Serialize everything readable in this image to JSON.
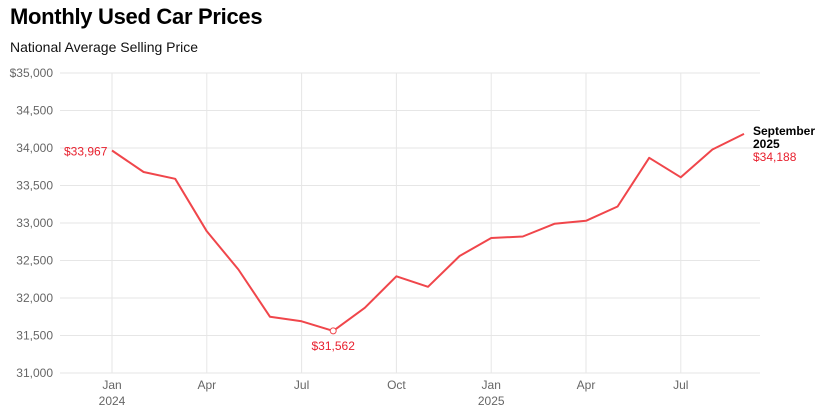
{
  "header": {
    "title": "Monthly Used Car Prices",
    "subtitle": "National Average Selling Price"
  },
  "colors": {
    "line": "#f0464b",
    "label": "#e8202e",
    "grid": "#e6e6e6"
  },
  "chart_data": {
    "type": "line",
    "title": "Monthly Used Car Prices",
    "subtitle": "National Average Selling Price",
    "xlabel": "",
    "ylabel": "",
    "ylim": [
      31000,
      35000
    ],
    "grid": true,
    "y_ticks": [
      31000,
      31500,
      32000,
      32500,
      33000,
      33500,
      34000,
      34500,
      35000
    ],
    "y_tick_labels": [
      "31,000",
      "31,500",
      "32,000",
      "32,500",
      "33,000",
      "33,500",
      "34,000",
      "34,500",
      "$35,000"
    ],
    "x_ticks": [
      {
        "month": "2024-01",
        "label": "Jan",
        "year": "2024"
      },
      {
        "month": "2024-04",
        "label": "Apr",
        "year": ""
      },
      {
        "month": "2024-07",
        "label": "Jul",
        "year": ""
      },
      {
        "month": "2024-10",
        "label": "Oct",
        "year": ""
      },
      {
        "month": "2025-01",
        "label": "Jan",
        "year": "2025"
      },
      {
        "month": "2025-04",
        "label": "Apr",
        "year": ""
      },
      {
        "month": "2025-07",
        "label": "Jul",
        "year": ""
      }
    ],
    "series": [
      {
        "x": [
          "2024-01",
          "2024-02",
          "2024-03",
          "2024-04",
          "2024-05",
          "2024-06",
          "2024-07",
          "2024-08",
          "2024-09",
          "2024-10",
          "2024-11",
          "2024-12",
          "2025-01",
          "2025-02",
          "2025-03",
          "2025-04",
          "2025-05",
          "2025-06",
          "2025-07",
          "2025-08",
          "2025-09"
        ],
        "values": [
          33967,
          33680,
          33590,
          32890,
          32380,
          31750,
          31690,
          31562,
          31870,
          32290,
          32150,
          32560,
          32800,
          32820,
          32990,
          33030,
          33220,
          33870,
          33610,
          33980,
          34188
        ]
      }
    ],
    "annotations": [
      {
        "month": "2024-01",
        "text": "$33,967"
      },
      {
        "month": "2024-08",
        "text": "$31,562"
      },
      {
        "month": "2025-09",
        "title_line1": "September",
        "title_line2": "2025",
        "text": "$34,188"
      }
    ]
  }
}
